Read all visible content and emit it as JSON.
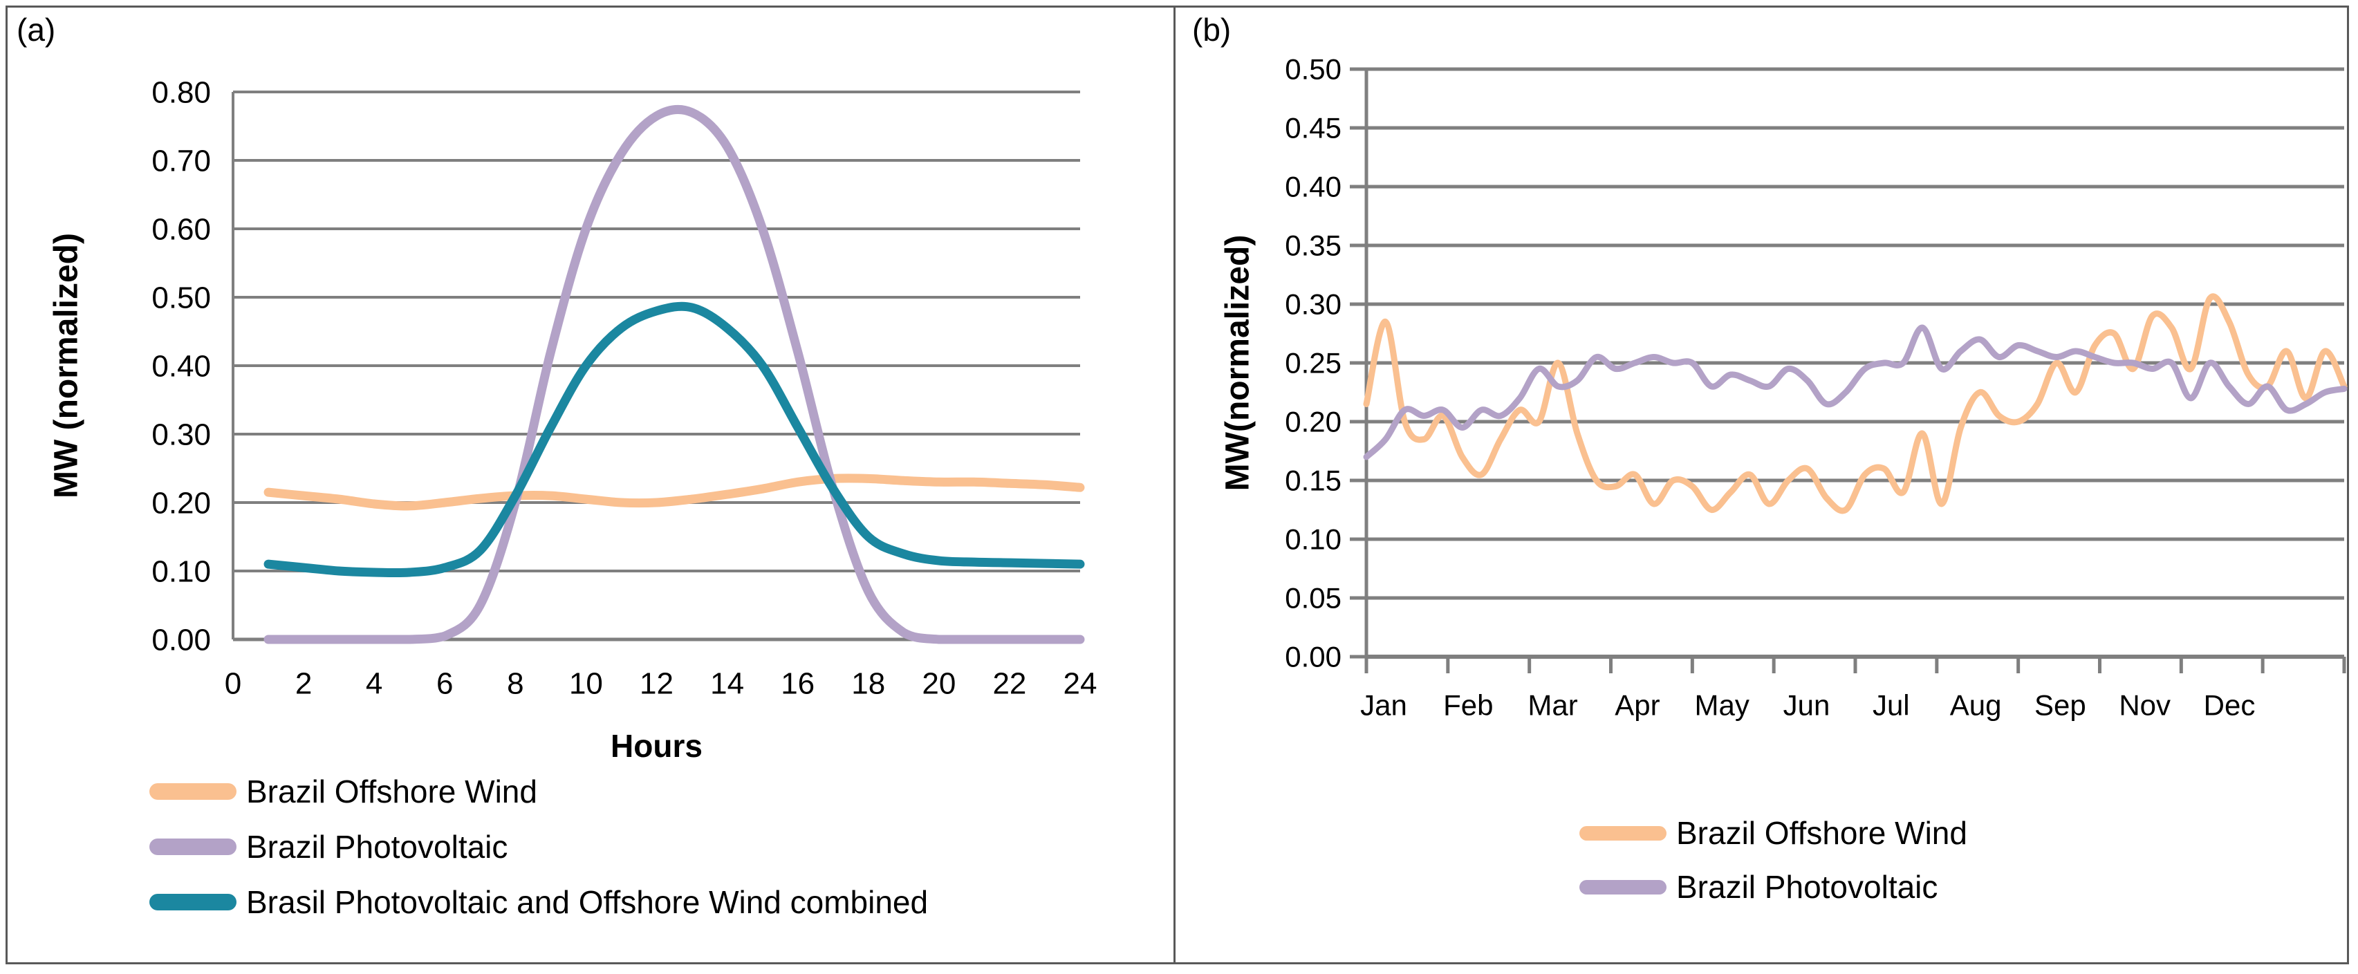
{
  "figure": {
    "panel_count": 2,
    "border_color": "#595959",
    "grid_color": "#7f7f7f",
    "text_color": "#000000"
  },
  "chart_data": [
    {
      "type": "line",
      "tag": "(a)",
      "xlabel": "Hours",
      "ylabel": "MW (normalized)",
      "xlim": [
        0,
        24
      ],
      "ylim": [
        0,
        0.8
      ],
      "grid": "horizontal",
      "legend_position": "bottom-left",
      "y_tick_labels": [
        "0.80",
        "0.70",
        "0.60",
        "0.50",
        "0.40",
        "0.30",
        "0.20",
        "0.10",
        "0.00"
      ],
      "x_tick_labels": [
        "0",
        "2",
        "4",
        "6",
        "8",
        "10",
        "12",
        "14",
        "16",
        "18",
        "20",
        "22",
        "24"
      ],
      "x": [
        1,
        2,
        3,
        4,
        5,
        6,
        7,
        8,
        9,
        10,
        11,
        12,
        13,
        14,
        15,
        16,
        17,
        18,
        19,
        20,
        21,
        22,
        23,
        24
      ],
      "series": [
        {
          "name": "Brazil Offshore Wind",
          "color": "#FAC090",
          "values": [
            0.215,
            0.21,
            0.205,
            0.198,
            0.195,
            0.2,
            0.206,
            0.21,
            0.21,
            0.205,
            0.2,
            0.2,
            0.205,
            0.212,
            0.22,
            0.23,
            0.235,
            0.235,
            0.232,
            0.23,
            0.23,
            0.228,
            0.226,
            0.222
          ]
        },
        {
          "name": "Brazil Photovoltaic",
          "color": "#B3A2C7",
          "values": [
            0.0,
            0.0,
            0.0,
            0.0,
            0.0,
            0.005,
            0.05,
            0.2,
            0.42,
            0.6,
            0.71,
            0.765,
            0.77,
            0.72,
            0.6,
            0.42,
            0.22,
            0.07,
            0.01,
            0.0,
            0.0,
            0.0,
            0.0,
            0.0
          ]
        },
        {
          "name": "Brasil Photovoltaic and Offshore Wind combined",
          "color": "#1B87A0",
          "values": [
            0.11,
            0.105,
            0.1,
            0.098,
            0.098,
            0.105,
            0.13,
            0.21,
            0.31,
            0.4,
            0.455,
            0.48,
            0.485,
            0.455,
            0.4,
            0.31,
            0.22,
            0.15,
            0.125,
            0.115,
            0.113,
            0.112,
            0.111,
            0.11
          ]
        }
      ]
    },
    {
      "type": "line",
      "tag": "(b)",
      "xlabel": "",
      "ylabel": "MW(normalized)",
      "ylim": [
        0,
        0.5
      ],
      "grid": "horizontal",
      "legend_position": "bottom-center",
      "y_tick_labels": [
        "0.50",
        "0.45",
        "0.40",
        "0.35",
        "0.30",
        "0.25",
        "0.20",
        "0.15",
        "0.10",
        "0.05",
        "0.00"
      ],
      "x_tick_labels": [
        "Jan",
        "Feb",
        "Mar",
        "Apr",
        "May",
        "Jun",
        "Jul",
        "Aug",
        "Sep",
        "Nov",
        "Dec"
      ],
      "series": [
        {
          "name": "Brazil Offshore Wind",
          "color": "#FAC090",
          "values": [
            0.215,
            0.285,
            0.2,
            0.185,
            0.205,
            0.17,
            0.155,
            0.185,
            0.21,
            0.2,
            0.25,
            0.19,
            0.15,
            0.145,
            0.155,
            0.13,
            0.15,
            0.145,
            0.125,
            0.14,
            0.155,
            0.13,
            0.15,
            0.16,
            0.135,
            0.125,
            0.155,
            0.16,
            0.14,
            0.19,
            0.13,
            0.195,
            0.225,
            0.205,
            0.2,
            0.215,
            0.25,
            0.225,
            0.265,
            0.275,
            0.245,
            0.29,
            0.28,
            0.245,
            0.305,
            0.285,
            0.24,
            0.23,
            0.26,
            0.22,
            0.26,
            0.23
          ]
        },
        {
          "name": "Brazil Photovoltaic",
          "color": "#B3A2C7",
          "values": [
            0.17,
            0.185,
            0.21,
            0.205,
            0.21,
            0.195,
            0.21,
            0.205,
            0.22,
            0.245,
            0.23,
            0.235,
            0.255,
            0.245,
            0.25,
            0.255,
            0.25,
            0.25,
            0.23,
            0.24,
            0.235,
            0.23,
            0.245,
            0.235,
            0.215,
            0.225,
            0.245,
            0.25,
            0.25,
            0.28,
            0.245,
            0.26,
            0.27,
            0.255,
            0.265,
            0.26,
            0.255,
            0.26,
            0.255,
            0.25,
            0.25,
            0.245,
            0.25,
            0.22,
            0.25,
            0.23,
            0.215,
            0.23,
            0.21,
            0.215,
            0.225,
            0.228
          ]
        }
      ]
    }
  ]
}
